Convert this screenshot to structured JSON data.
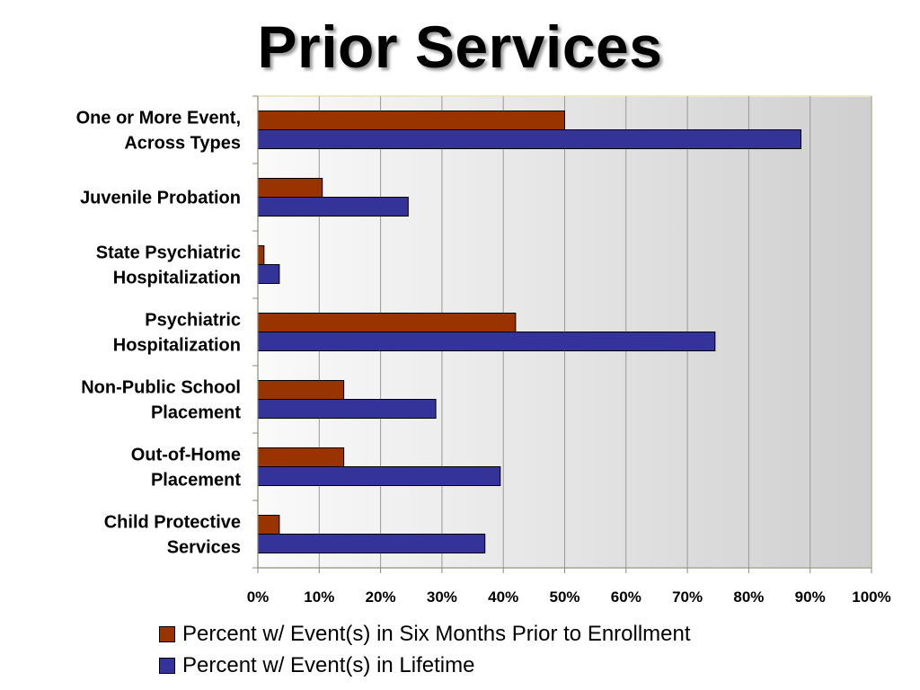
{
  "title": "Prior Services",
  "chart_data": {
    "type": "bar",
    "orientation": "horizontal",
    "categories": [
      [
        "One or More Event,",
        "Across Types"
      ],
      [
        "Juvenile Probation"
      ],
      [
        "State Psychiatric",
        "Hospitalization"
      ],
      [
        "Psychiatric",
        "Hospitalization"
      ],
      [
        "Non-Public School",
        "Placement"
      ],
      [
        "Out-of-Home",
        "Placement"
      ],
      [
        "Child Protective",
        "Services"
      ]
    ],
    "series": [
      {
        "name": "Percent w/ Event(s) in Six Months Prior to Enrollment",
        "color": "#993300",
        "values": [
          50,
          10.5,
          1,
          42,
          14,
          14,
          3.5
        ]
      },
      {
        "name": "Percent w/ Event(s) in Lifetime",
        "color": "#333399",
        "values": [
          88.5,
          24.5,
          3.5,
          74.5,
          29,
          39.5,
          37
        ]
      }
    ],
    "xlim": [
      0,
      100
    ],
    "xticks": [
      "0%",
      "10%",
      "20%",
      "30%",
      "40%",
      "50%",
      "60%",
      "70%",
      "80%",
      "90%",
      "100%"
    ],
    "grid": true,
    "legend_position": "bottom"
  }
}
